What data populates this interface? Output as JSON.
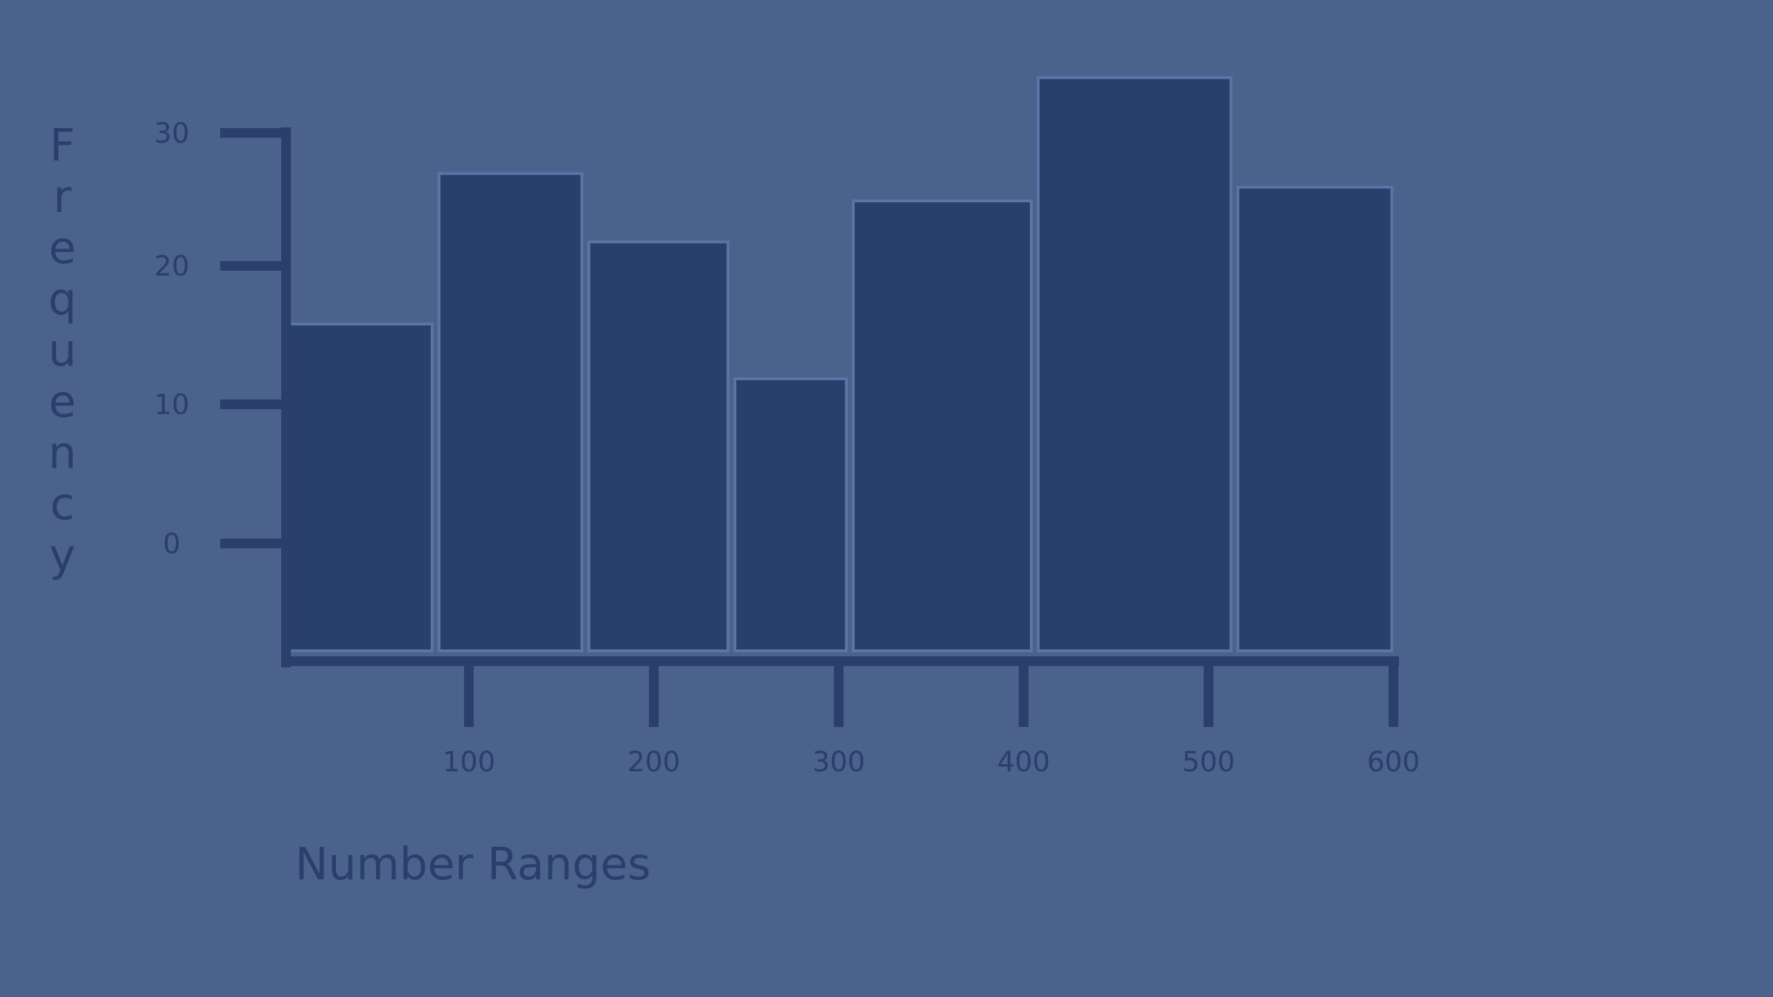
{
  "colors": {
    "background": "#4b628d",
    "bar_fill": "#29406d",
    "bar_gap": "#5a76a6",
    "axis": "#2a3f6b",
    "text": "#2a3f6b"
  },
  "chart_data": {
    "type": "bar",
    "histogram": true,
    "title": "",
    "xlabel": "Number Ranges",
    "ylabel": "Frequency",
    "x_ticks": [
      100,
      200,
      300,
      400,
      500,
      600
    ],
    "y_ticks": [
      0,
      10,
      20,
      30
    ],
    "xlim": [
      0,
      600
    ],
    "ylim": [
      0,
      30
    ],
    "bins": [
      {
        "start": 0,
        "end": 82,
        "value": 13
      },
      {
        "start": 82,
        "end": 163,
        "value": 24
      },
      {
        "start": 163,
        "end": 242,
        "value": 19
      },
      {
        "start": 242,
        "end": 306,
        "value": 9
      },
      {
        "start": 306,
        "end": 406,
        "value": 22
      },
      {
        "start": 406,
        "end": 514,
        "value": 31
      },
      {
        "start": 514,
        "end": 601,
        "value": 23
      }
    ],
    "grid": false,
    "legend": "none"
  }
}
